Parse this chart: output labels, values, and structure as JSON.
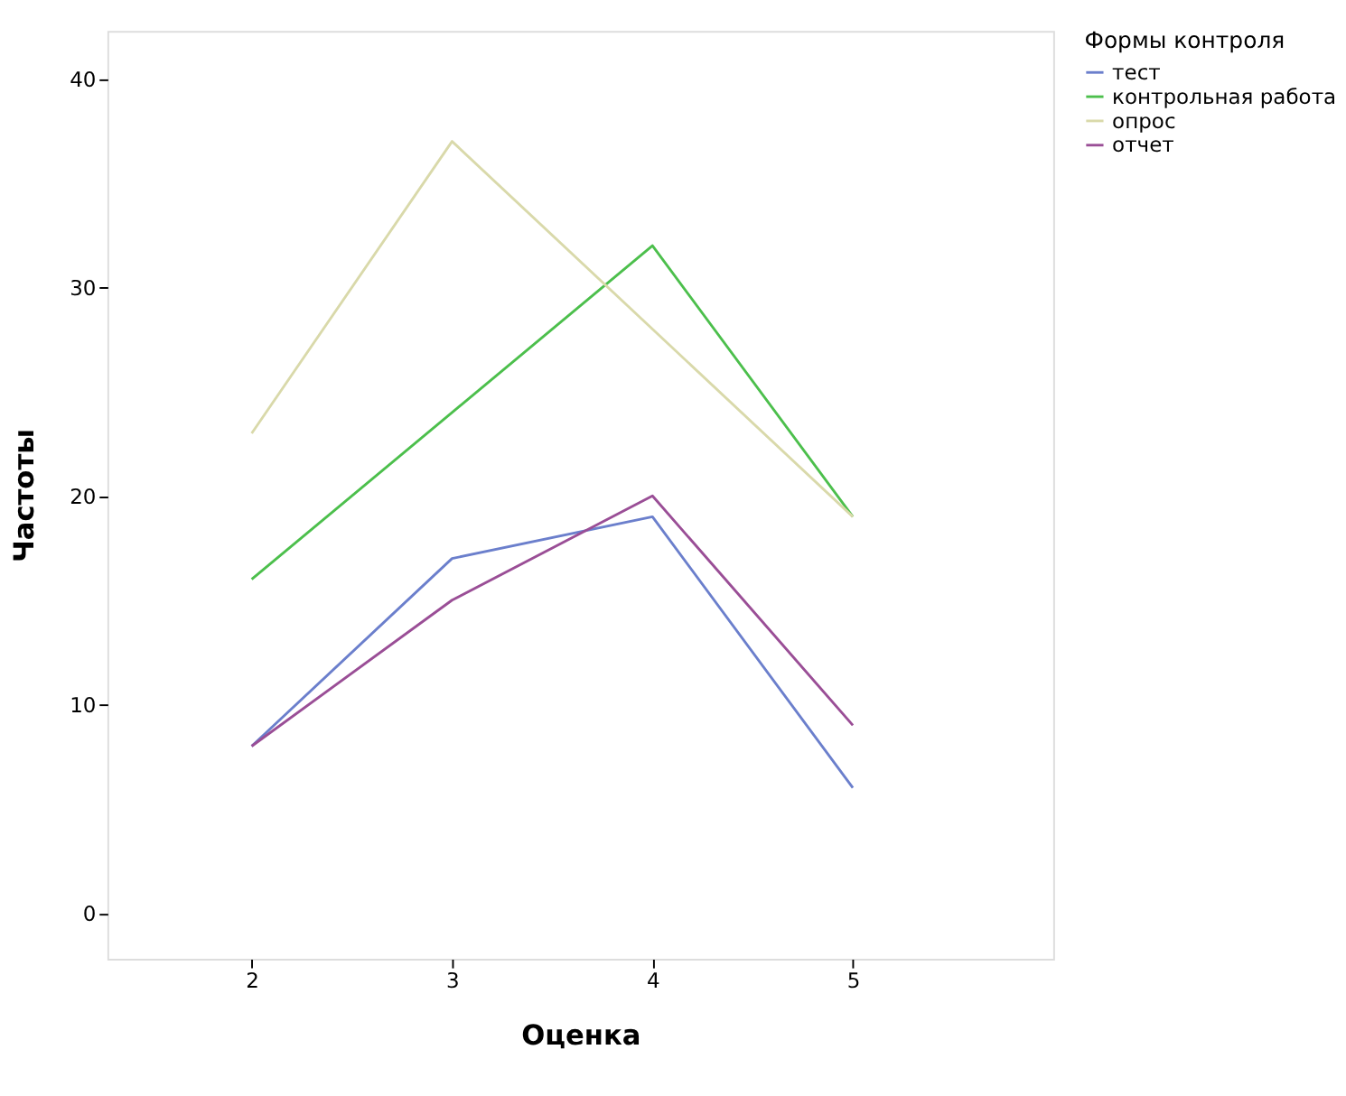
{
  "chart_data": {
    "type": "line",
    "xlabel": "Оценка",
    "ylabel": "Частоты",
    "legend_title": "Формы контроля",
    "legend": "right",
    "grid": false,
    "marker": "none",
    "line_style": "solid",
    "x": [
      2,
      3,
      4,
      5
    ],
    "xlim": [
      1.28,
      6.0
    ],
    "xticks": [
      2,
      3,
      4,
      5
    ],
    "ylim": [
      -2.2,
      42.3
    ],
    "yticks": [
      0,
      10,
      20,
      30,
      40
    ],
    "series": [
      {
        "name": "тест",
        "color": "#6b7fcc",
        "values": [
          8,
          17,
          19,
          6
        ]
      },
      {
        "name": "контрольная работа",
        "color": "#4cbf4c",
        "values": [
          16,
          24,
          32,
          19
        ]
      },
      {
        "name": "опрос",
        "color": "#d9d9aa",
        "values": [
          23,
          37,
          28,
          19
        ]
      },
      {
        "name": "отчет",
        "color": "#9a4e96",
        "values": [
          8,
          15,
          20,
          9
        ]
      }
    ]
  }
}
